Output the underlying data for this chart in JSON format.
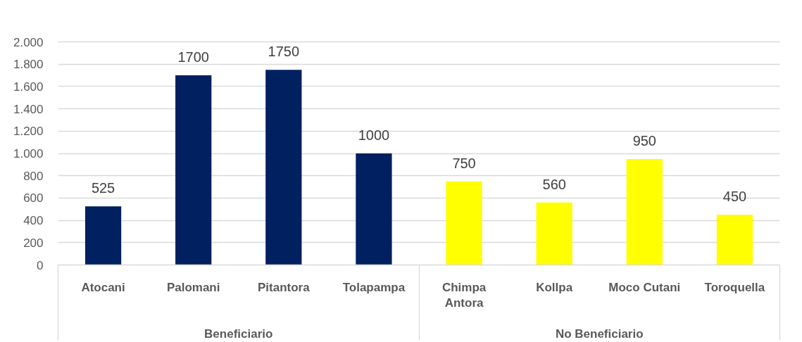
{
  "chart_data": {
    "type": "bar",
    "categories": [
      "Atocani",
      "Palomani",
      "Pitantora",
      "Tolapampa",
      "Chimpa Antora",
      "Kollpa",
      "Moco Cutani",
      "Toroquella"
    ],
    "series": [
      {
        "color": "#002060",
        "values": [
          525,
          1700,
          1750,
          1000,
          null,
          null,
          null,
          null
        ]
      },
      {
        "color": "#ffff00",
        "values": [
          null,
          null,
          null,
          null,
          750,
          560,
          950,
          450
        ]
      }
    ],
    "ylim": [
      0,
      2000
    ],
    "yticks": [
      0,
      200,
      400,
      600,
      800,
      {
        "value": 1000,
        "label": "1.000"
      },
      {
        "value": 1200,
        "label": "1.200"
      },
      {
        "value": 1400,
        "label": "1.400"
      },
      {
        "value": 1600,
        "label": "1.600"
      },
      {
        "value": 1800,
        "label": "1.800"
      },
      {
        "value": 2000,
        "label": "2.000"
      }
    ],
    "grid": "y",
    "data_labels": true,
    "annotations": [
      "Beneficiario",
      "No Beneficiario"
    ]
  }
}
